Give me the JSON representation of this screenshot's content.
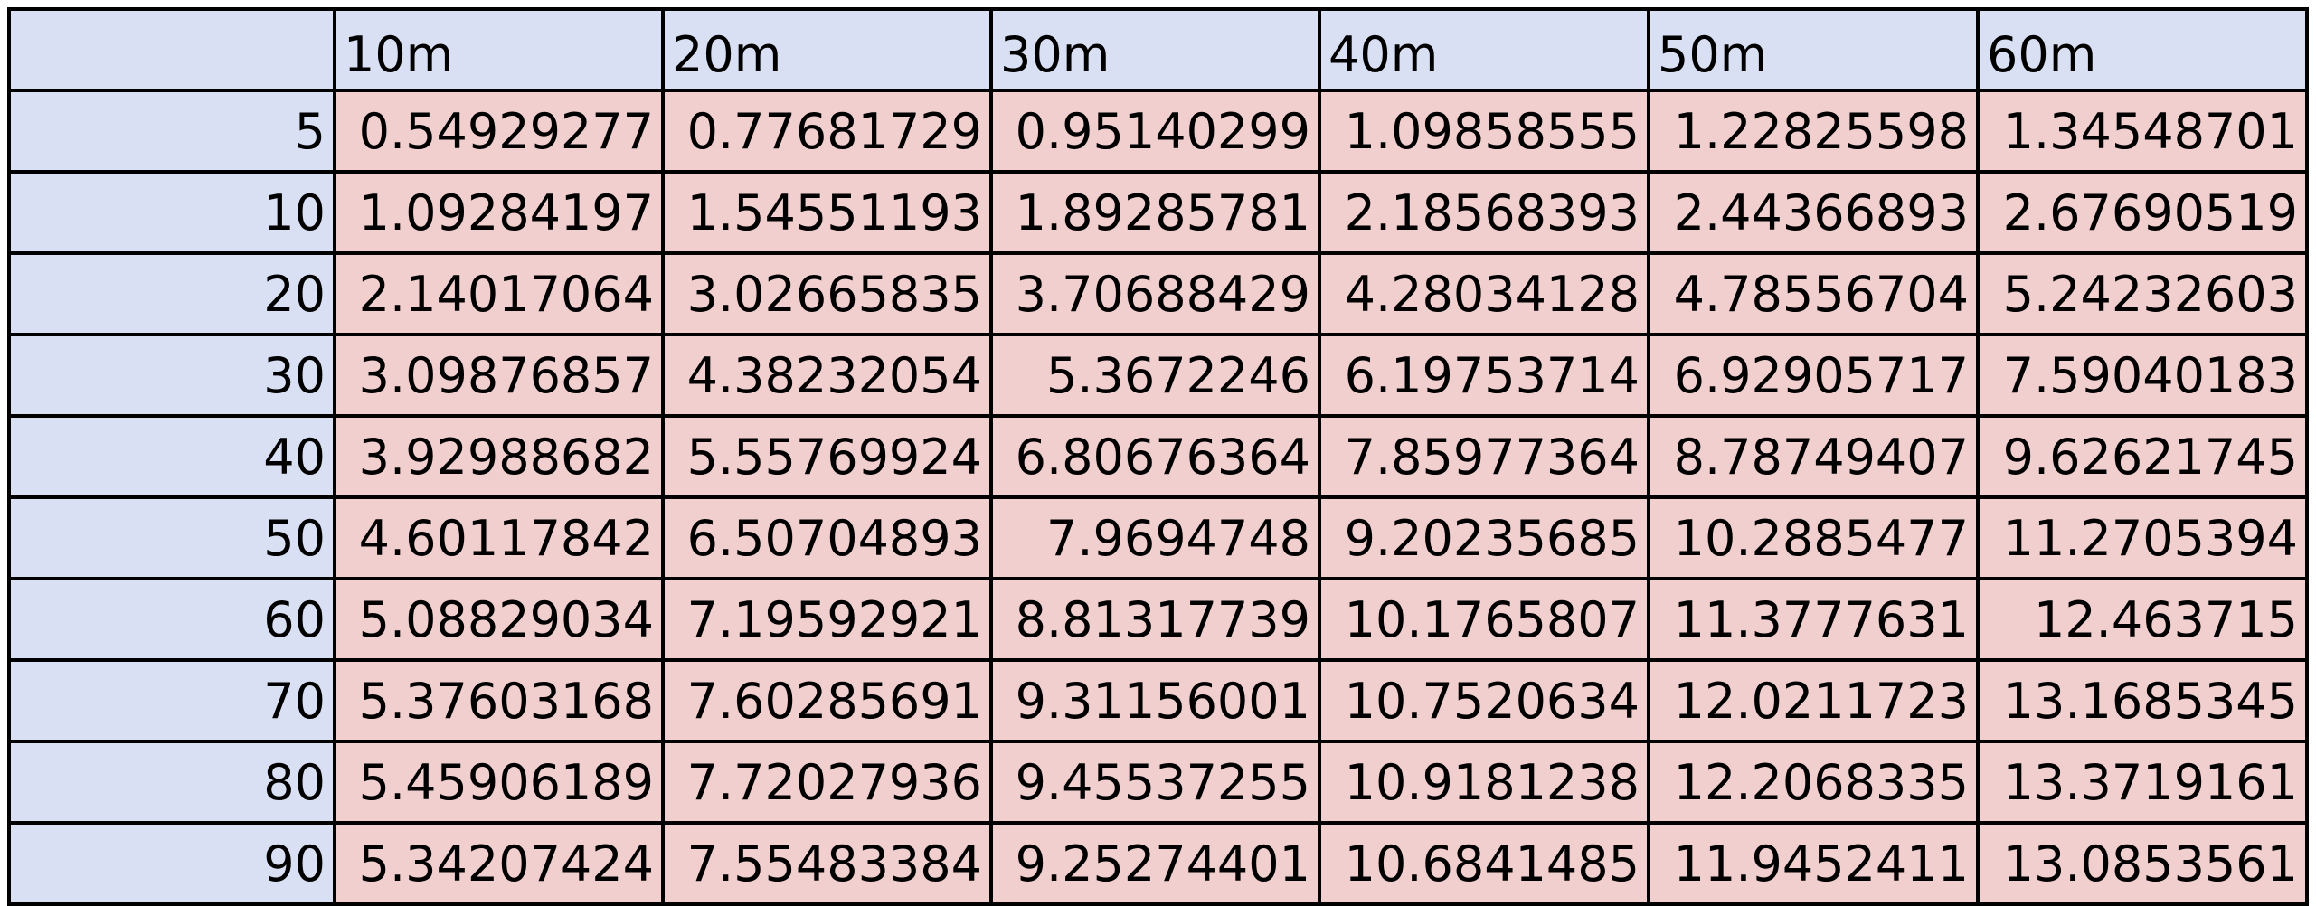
{
  "table": {
    "corner": "",
    "columns": [
      "10m",
      "20m",
      "30m",
      "40m",
      "50m",
      "60m"
    ],
    "rows": [
      {
        "label": "5",
        "values": [
          "0.54929277",
          "0.77681729",
          "0.95140299",
          "1.09858555",
          "1.22825598",
          "1.34548701"
        ]
      },
      {
        "label": "10",
        "values": [
          "1.09284197",
          "1.54551193",
          "1.89285781",
          "2.18568393",
          "2.44366893",
          "2.67690519"
        ]
      },
      {
        "label": "20",
        "values": [
          "2.14017064",
          "3.02665835",
          "3.70688429",
          "4.28034128",
          "4.78556704",
          "5.24232603"
        ]
      },
      {
        "label": "30",
        "values": [
          "3.09876857",
          "4.38232054",
          "5.3672246",
          "6.19753714",
          "6.92905717",
          "7.59040183"
        ]
      },
      {
        "label": "40",
        "values": [
          "3.92988682",
          "5.55769924",
          "6.80676364",
          "7.85977364",
          "8.78749407",
          "9.62621745"
        ]
      },
      {
        "label": "50",
        "values": [
          "4.60117842",
          "6.50704893",
          "7.9694748",
          "9.20235685",
          "10.2885477",
          "11.2705394"
        ]
      },
      {
        "label": "60",
        "values": [
          "5.08829034",
          "7.19592921",
          "8.81317739",
          "10.1765807",
          "11.3777631",
          "12.463715"
        ]
      },
      {
        "label": "70",
        "values": [
          "5.37603168",
          "7.60285691",
          "9.31156001",
          "10.7520634",
          "12.0211723",
          "13.1685345"
        ]
      },
      {
        "label": "80",
        "values": [
          "5.45906189",
          "7.72027936",
          "9.45537255",
          "10.9181238",
          "12.2068335",
          "13.3719161"
        ]
      },
      {
        "label": "90",
        "values": [
          "5.34207424",
          "7.55483384",
          "9.25274401",
          "10.6841485",
          "11.9452411",
          "13.0853561"
        ]
      }
    ]
  },
  "colors": {
    "header_fill": "#dae0f3",
    "value_fill": "#f2cfcf",
    "border": "#000000"
  }
}
